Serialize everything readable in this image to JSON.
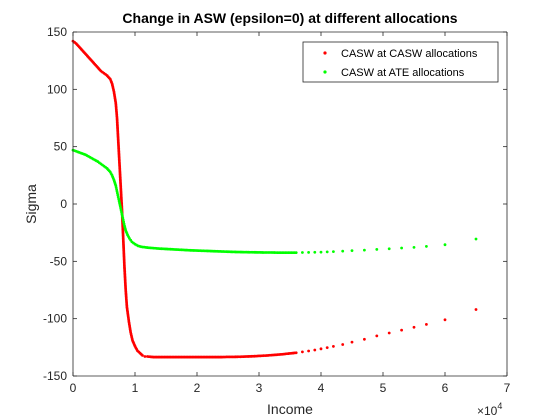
{
  "chart_data": {
    "type": "scatter",
    "title": "Change in ASW (epsilon=0) at different allocations",
    "xlabel": "Income",
    "ylabel": "Sigma",
    "x_exponent_label": "×10",
    "x_exponent_power": "4",
    "xlim": [
      0,
      70000
    ],
    "ylim": [
      -150,
      150
    ],
    "x_ticks": [
      0,
      10000,
      20000,
      30000,
      40000,
      50000,
      60000,
      70000
    ],
    "x_tick_labels": [
      "0",
      "1",
      "2",
      "3",
      "4",
      "5",
      "6",
      "7"
    ],
    "y_ticks": [
      -150,
      -100,
      -50,
      0,
      50,
      100,
      150
    ],
    "y_tick_labels": [
      "-150",
      "-100",
      "-50",
      "0",
      "50",
      "100",
      "150"
    ],
    "grid": false,
    "legend_position": "top-right",
    "series": [
      {
        "name": "CASW at CASW allocations",
        "color": "#ff0000",
        "marker": "dot",
        "points": [
          [
            0,
            142
          ],
          [
            500,
            140
          ],
          [
            1000,
            137
          ],
          [
            1500,
            134
          ],
          [
            2000,
            131
          ],
          [
            2500,
            128
          ],
          [
            3000,
            125
          ],
          [
            3500,
            122
          ],
          [
            4000,
            119
          ],
          [
            4500,
            116
          ],
          [
            5000,
            114
          ],
          [
            5500,
            112
          ],
          [
            6000,
            109
          ],
          [
            6300,
            105
          ],
          [
            6600,
            98
          ],
          [
            6900,
            88
          ],
          [
            7100,
            75
          ],
          [
            7300,
            55
          ],
          [
            7500,
            35
          ],
          [
            7700,
            15
          ],
          [
            7900,
            -5
          ],
          [
            8100,
            -30
          ],
          [
            8300,
            -55
          ],
          [
            8500,
            -75
          ],
          [
            8700,
            -90
          ],
          [
            9000,
            -102
          ],
          [
            9300,
            -112
          ],
          [
            9600,
            -119
          ],
          [
            10000,
            -124
          ],
          [
            10400,
            -128
          ],
          [
            10800,
            -130
          ],
          [
            11200,
            -132
          ],
          [
            11600,
            -133
          ],
          [
            12000,
            -133
          ],
          [
            13000,
            -133.5
          ],
          [
            14000,
            -133.5
          ],
          [
            15000,
            -133.5
          ],
          [
            16000,
            -133.5
          ],
          [
            17000,
            -133.5
          ],
          [
            18000,
            -133.5
          ],
          [
            19000,
            -133.5
          ],
          [
            20000,
            -133.5
          ],
          [
            21000,
            -133.5
          ],
          [
            22000,
            -133.5
          ],
          [
            23000,
            -133.5
          ],
          [
            24000,
            -133.5
          ],
          [
            25000,
            -133.3
          ],
          [
            26000,
            -133.3
          ],
          [
            27000,
            -133.2
          ],
          [
            28000,
            -133
          ],
          [
            29000,
            -132.8
          ],
          [
            30000,
            -132.5
          ],
          [
            31000,
            -132.2
          ],
          [
            32000,
            -131.8
          ],
          [
            33000,
            -131.4
          ],
          [
            34000,
            -130.9
          ],
          [
            35000,
            -130.3
          ],
          [
            36000,
            -129.7
          ],
          [
            37000,
            -129
          ],
          [
            38000,
            -128.2
          ],
          [
            39000,
            -127.3
          ],
          [
            40000,
            -126.3
          ],
          [
            41000,
            -125.3
          ],
          [
            42000,
            -124.2
          ],
          [
            43500,
            -122.5
          ],
          [
            45000,
            -120.5
          ],
          [
            47000,
            -118
          ],
          [
            49000,
            -115
          ],
          [
            51000,
            -112.5
          ],
          [
            53000,
            -110
          ],
          [
            55000,
            -107.5
          ],
          [
            57000,
            -105
          ],
          [
            60000,
            -101
          ],
          [
            65000,
            -92
          ]
        ]
      },
      {
        "name": "CASW at ATE allocations",
        "color": "#00ff00",
        "marker": "dot",
        "points": [
          [
            0,
            47
          ],
          [
            500,
            46
          ],
          [
            1000,
            45
          ],
          [
            1500,
            44
          ],
          [
            2000,
            43
          ],
          [
            2500,
            41.5
          ],
          [
            3000,
            40
          ],
          [
            3500,
            38.5
          ],
          [
            4000,
            37
          ],
          [
            4500,
            35
          ],
          [
            5000,
            33
          ],
          [
            5500,
            31
          ],
          [
            6000,
            28
          ],
          [
            6300,
            25
          ],
          [
            6600,
            21
          ],
          [
            6900,
            16
          ],
          [
            7100,
            11
          ],
          [
            7300,
            6
          ],
          [
            7500,
            1
          ],
          [
            7700,
            -4
          ],
          [
            7900,
            -9
          ],
          [
            8100,
            -14
          ],
          [
            8300,
            -19
          ],
          [
            8500,
            -23
          ],
          [
            8800,
            -27
          ],
          [
            9100,
            -30
          ],
          [
            9500,
            -33
          ],
          [
            10000,
            -35
          ],
          [
            10500,
            -36.5
          ],
          [
            11000,
            -37.3
          ],
          [
            12000,
            -38
          ],
          [
            13000,
            -38.5
          ],
          [
            14000,
            -38.9
          ],
          [
            15000,
            -39.2
          ],
          [
            16000,
            -39.5
          ],
          [
            17000,
            -39.8
          ],
          [
            18000,
            -40.1
          ],
          [
            19000,
            -40.4
          ],
          [
            20000,
            -40.6
          ],
          [
            21000,
            -40.8
          ],
          [
            22000,
            -41
          ],
          [
            23000,
            -41.2
          ],
          [
            24000,
            -41.4
          ],
          [
            25000,
            -41.6
          ],
          [
            26000,
            -41.8
          ],
          [
            27000,
            -41.9
          ],
          [
            28000,
            -42
          ],
          [
            29000,
            -42.1
          ],
          [
            30000,
            -42.2
          ],
          [
            31000,
            -42.3
          ],
          [
            32000,
            -42.3
          ],
          [
            33000,
            -42.4
          ],
          [
            34000,
            -42.4
          ],
          [
            35000,
            -42.4
          ],
          [
            36000,
            -42.4
          ],
          [
            37000,
            -42.3
          ],
          [
            38000,
            -42.2
          ],
          [
            39000,
            -42.1
          ],
          [
            40000,
            -42
          ],
          [
            41000,
            -41.8
          ],
          [
            42000,
            -41.5
          ],
          [
            43500,
            -41.1
          ],
          [
            45000,
            -40.7
          ],
          [
            47000,
            -40.2
          ],
          [
            49000,
            -39.6
          ],
          [
            51000,
            -39
          ],
          [
            53000,
            -38.4
          ],
          [
            55000,
            -37.8
          ],
          [
            57000,
            -37
          ],
          [
            60000,
            -35.5
          ],
          [
            65000,
            -30.5
          ]
        ]
      }
    ]
  }
}
